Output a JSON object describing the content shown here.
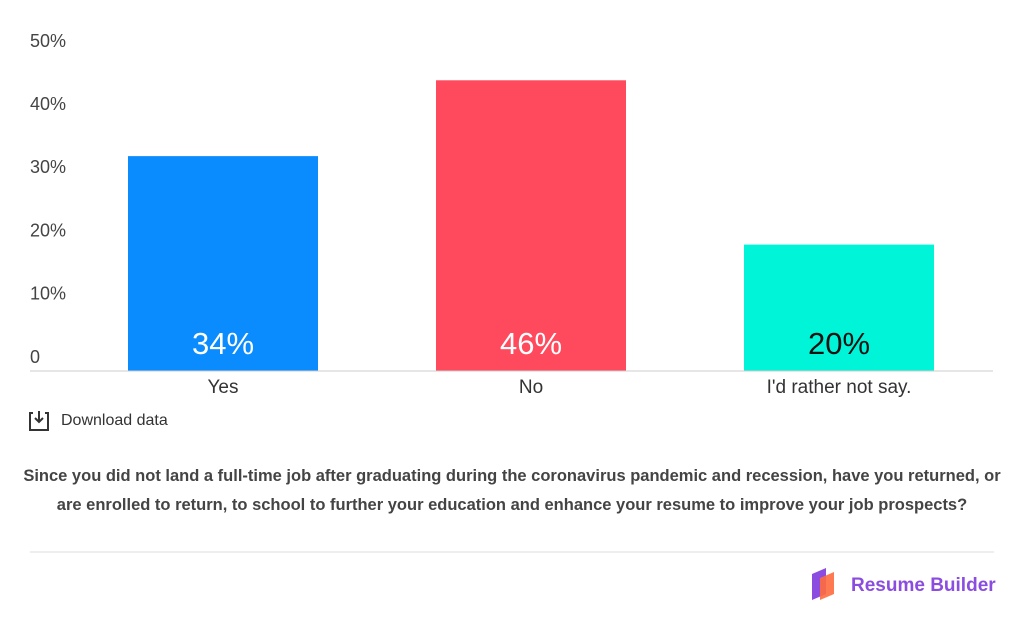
{
  "chart_data": {
    "type": "bar",
    "categories": [
      "Yes",
      "No",
      "I'd rather not say."
    ],
    "values": [
      34,
      46,
      20
    ],
    "value_labels": [
      "34%",
      "46%",
      "20%"
    ],
    "colors": [
      "#0a8cff",
      "#ff4a5e",
      "#00f5d8"
    ],
    "ylim": [
      0,
      50
    ],
    "yticks": [
      0,
      {
        "value": 10,
        "label": "10%"
      },
      {
        "value": 20,
        "label": "20%"
      },
      {
        "value": 30,
        "label": "30%"
      },
      {
        "value": 40,
        "label": "40%"
      },
      {
        "value": 50,
        "label": "50%"
      }
    ],
    "grid": false
  },
  "download_label": "Download data",
  "caption": "Since you did not land a full-time job after graduating during the coronavirus pandemic and recession, have you returned, or are enrolled to return, to school to further your education and enhance your resume to improve your job prospects?",
  "brand": "Resume Builder"
}
